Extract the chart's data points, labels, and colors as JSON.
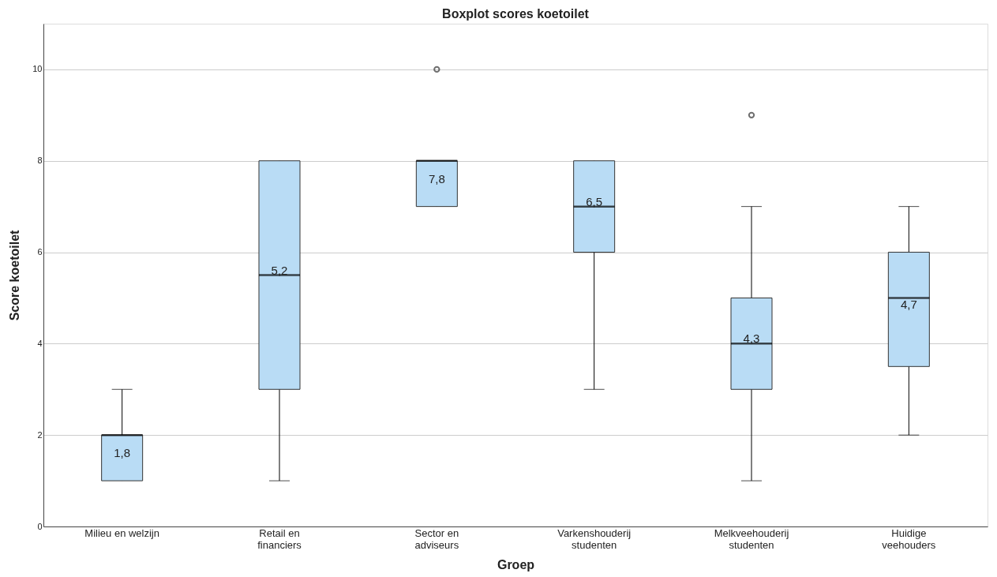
{
  "chart_data": {
    "type": "box",
    "title": "Boxplot scores koetoilet",
    "xlabel": "Groep",
    "ylabel": "Score koetoilet",
    "categories": [
      "Milieu en welzijn",
      "Retail en\nfinanciers",
      "Sector en\nadviseurs",
      "Varkenshouderij\nstudenten",
      "Melkveehouderij\nstudenten",
      "Huidige\nveehouders"
    ],
    "boxes": [
      {
        "low": 1,
        "q1": 1,
        "median": 2,
        "q3": 2,
        "high": 3
      },
      {
        "low": 1,
        "q1": 3,
        "median": 5.5,
        "q3": 8,
        "high": 8
      },
      {
        "low": 7,
        "q1": 7,
        "median": 8,
        "q3": 8,
        "high": 8,
        "outliers": [
          10
        ]
      },
      {
        "low": 3,
        "q1": 6,
        "median": 7,
        "q3": 8,
        "high": 8
      },
      {
        "low": 1,
        "q1": 3,
        "median": 4,
        "q3": 5,
        "high": 7,
        "outliers": [
          9
        ]
      },
      {
        "low": 2,
        "q1": 3.5,
        "median": 5,
        "q3": 6,
        "high": 7
      }
    ],
    "value_labels": [
      "1,8",
      "5,2",
      "7,8",
      "6,5",
      "4,3",
      "4,7"
    ],
    "color": "#b9dcf5",
    "ylim": [
      0,
      11
    ],
    "yticks": [
      0,
      2,
      4,
      6,
      8,
      10
    ],
    "grid": "y"
  }
}
